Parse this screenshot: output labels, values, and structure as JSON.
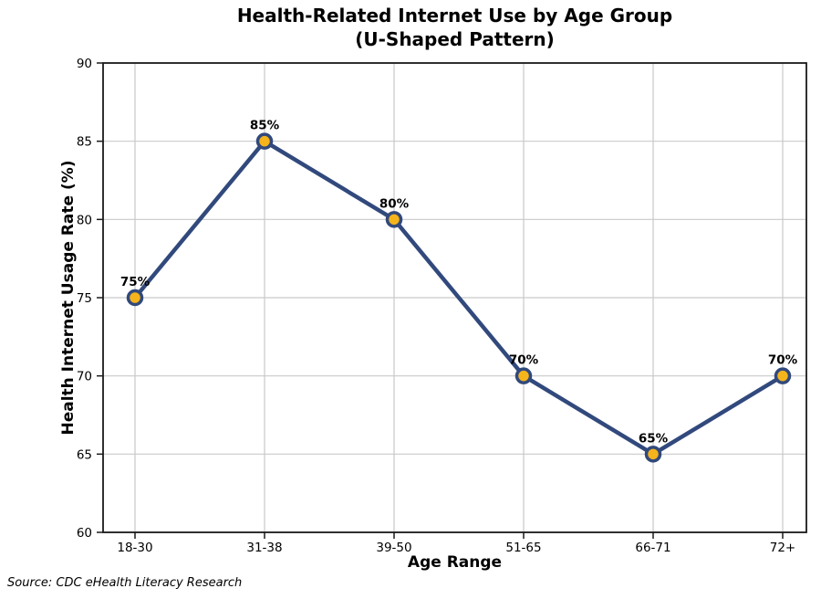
{
  "figure": {
    "title_line1": "Health-Related Internet Use by Age Group",
    "title_line2": "(U-Shaped Pattern)"
  },
  "chart_data": {
    "type": "line",
    "title": "Health-Related Internet Use by Age Group (U-Shaped Pattern)",
    "categories": [
      "18-30",
      "31-38",
      "39-50",
      "51-65",
      "66-71",
      "72+"
    ],
    "values": [
      75,
      85,
      80,
      70,
      65,
      70
    ],
    "point_labels": [
      "75%",
      "85%",
      "80%",
      "70%",
      "65%",
      "70%"
    ],
    "xlabel": "Age Range",
    "ylabel": "Health Internet Usage Rate (%)",
    "source": "Source: CDC eHealth Literacy Research",
    "ylim": [
      60,
      90
    ],
    "yticks": [
      60,
      65,
      70,
      75,
      80,
      85,
      90
    ],
    "grid": true,
    "legend": "none",
    "line_color": "#31497C",
    "marker_fill": "#F5B41C",
    "marker_edge": "#31497C",
    "grid_color": "#C9C9C9",
    "axis_color": "#1A1A1A",
    "text_color": "#000000"
  }
}
